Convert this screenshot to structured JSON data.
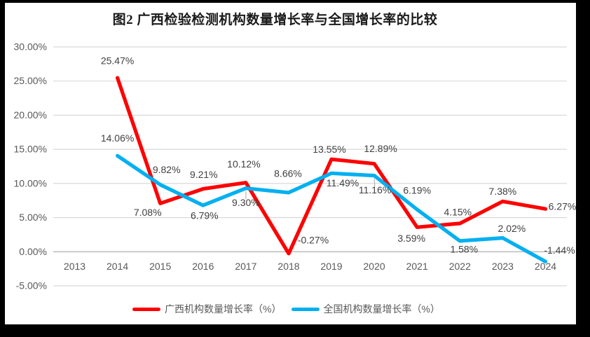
{
  "chart_data": {
    "type": "line",
    "title": "图2 广西检验检测机构数量增长率与全国增长率的比较",
    "categories": [
      "2013",
      "2014",
      "2015",
      "2016",
      "2017",
      "2018",
      "2019",
      "2020",
      "2021",
      "2022",
      "2023",
      "2024"
    ],
    "y_axis": {
      "min": -5,
      "max": 30,
      "step": 5,
      "tick_values": [
        30,
        25,
        20,
        15,
        10,
        5,
        0,
        -5
      ],
      "tick_labels": [
        "30.00%",
        "25.00%",
        "20.00%",
        "15.00%",
        "10.00%",
        "5.00%",
        "0.00%",
        "-5.00%"
      ]
    },
    "grid": true,
    "legend_position": "bottom",
    "series": [
      {
        "name": "广西机构数量增长率（%）",
        "color": "#FF0000",
        "points": [
          {
            "year": "2014",
            "value": 25.47,
            "label": "25.47%",
            "dx": 0,
            "dy": -24
          },
          {
            "year": "2015",
            "value": 7.08,
            "label": "7.08%",
            "dx": -18,
            "dy": 13
          },
          {
            "year": "2016",
            "value": 9.21,
            "label": "9.21%",
            "dx": 1,
            "dy": -20
          },
          {
            "year": "2017",
            "value": 10.12,
            "label": "10.12%",
            "dx": -3,
            "dy": -26
          },
          {
            "year": "2018",
            "value": -0.27,
            "label": "-0.27%",
            "dx": 35,
            "dy": -19
          },
          {
            "year": "2019",
            "value": 13.55,
            "label": "13.55%",
            "dx": -3,
            "dy": -14
          },
          {
            "year": "2020",
            "value": 12.89,
            "label": "12.89%",
            "dx": 9,
            "dy": -21
          },
          {
            "year": "2021",
            "value": 3.59,
            "label": "3.59%",
            "dx": -8,
            "dy": 16
          },
          {
            "year": "2022",
            "value": 4.15,
            "label": "4.15%",
            "dx": -3,
            "dy": -16
          },
          {
            "year": "2023",
            "value": 7.38,
            "label": "7.38%",
            "dx": 0,
            "dy": -14
          },
          {
            "year": "2024",
            "value": 6.27,
            "label": "6.27%",
            "dx": 24,
            "dy": -3
          }
        ]
      },
      {
        "name": "全国机构数量增长率（%）",
        "color": "#00B0F0",
        "points": [
          {
            "year": "2014",
            "value": 14.06,
            "label": "14.06%",
            "dx": 0,
            "dy": -25
          },
          {
            "year": "2015",
            "value": 9.82,
            "label": "9.82%",
            "dx": 9,
            "dy": -21
          },
          {
            "year": "2016",
            "value": 6.79,
            "label": "6.79%",
            "dx": 2,
            "dy": 15
          },
          {
            "year": "2017",
            "value": 9.3,
            "label": "9.30%",
            "dx": 0,
            "dy": 21,
            "leader": true
          },
          {
            "year": "2018",
            "value": 8.66,
            "label": "8.66%",
            "dx": -1,
            "dy": -27
          },
          {
            "year": "2019",
            "value": 11.49,
            "label": "11.49%",
            "dx": 16,
            "dy": 14
          },
          {
            "year": "2020",
            "value": 11.16,
            "label": "11.16%",
            "dx": 1,
            "dy": 21,
            "leader": true
          },
          {
            "year": "2021",
            "value": 6.19,
            "label": "6.19%",
            "dx": 0,
            "dy": -27
          },
          {
            "year": "2022",
            "value": 1.58,
            "label": "1.58%",
            "dx": 6,
            "dy": 12
          },
          {
            "year": "2023",
            "value": 2.02,
            "label": "2.02%",
            "dx": 13,
            "dy": -13
          },
          {
            "year": "2024",
            "value": -1.44,
            "label": "-1.44%",
            "dx": 20,
            "dy": -16
          }
        ]
      }
    ],
    "colors": {
      "gridline": "#D9D9D9",
      "axis_line": "#BFBFBF",
      "leader_line": "#A6A6A6",
      "tick_text": "#595959",
      "data_label_text": "#404040",
      "title_text": "#1a1a1a",
      "background": "#ffffff",
      "frame": "#000000"
    }
  }
}
